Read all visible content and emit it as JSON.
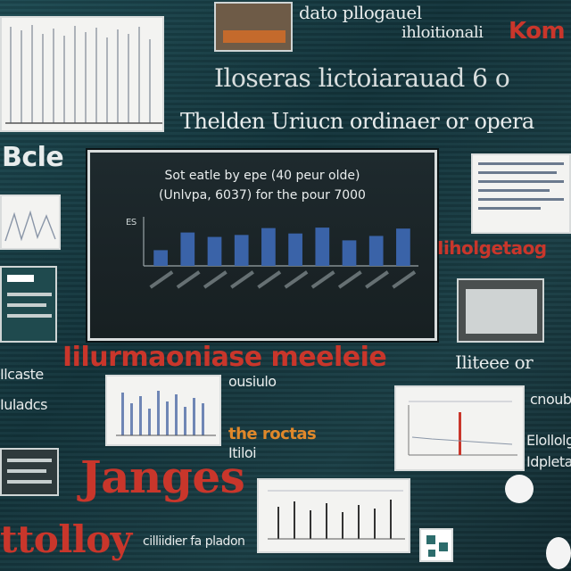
{
  "collage": {
    "snippets": {
      "top_title_1": "dato pllogauel",
      "top_title_2": "ihloitionali",
      "top_title_3": "Kom",
      "headline_1": "Iloseras lictoiarauad 6 o",
      "headline_2": "Thelden Uriucn ordinaer or opera",
      "left_big": "Bcle",
      "mid_left_1": "Ilcaste",
      "mid_left_2": "Iuladcs",
      "band_red": "Iilurmaoniase meeleie",
      "right_1": "Iliteee or",
      "right_2": "cnouble",
      "right_3": "Elollolge",
      "right_4": "Idpletae",
      "right_red_1": "Iiholgetaog",
      "lower_1": "ousiulo",
      "lower_2": "the roctas",
      "lower_3": "Itiloi",
      "big_red_1": "Janges",
      "big_red_2": "ttolloy",
      "bottom_small": "cilliidier fa pladon"
    }
  },
  "main_chart": {
    "title_line_1": "Sot eatle by epe (40 peur olde)",
    "title_line_2": "(Unlvpa, 6037) for the pour 7000",
    "y_axis_label": "ES"
  },
  "chart_data": {
    "type": "bar",
    "title": "Sot eatle by epe (40 peur olde) (Unlvpa, 6037) for the pour 7000",
    "categories": [
      "",
      "",
      "",
      "",
      "",
      "",
      "",
      "",
      "",
      ""
    ],
    "values": [
      3.2,
      6.8,
      5.9,
      6.3,
      7.7,
      6.6,
      7.8,
      5.2,
      6.1,
      7.6
    ],
    "ylim": [
      0,
      10
    ],
    "grid": false,
    "color": "#3a63a8"
  },
  "colors": {
    "background": "#16333a",
    "accent_red": "#c9362b",
    "bar_blue": "#3a63a8"
  }
}
